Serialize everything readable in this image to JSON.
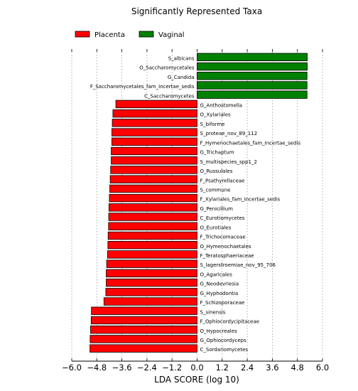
{
  "chart_data": {
    "type": "bar",
    "orientation": "horizontal",
    "title": "Significantly Represented Taxa",
    "xlabel": "LDA SCORE (log 10)",
    "ylabel": "",
    "xlim": [
      -6.0,
      6.0
    ],
    "xticks": [
      "−6.0",
      "−4.8",
      "−3.6",
      "−2.4",
      "−1.2",
      "0.0",
      "1.2",
      "2.4",
      "3.6",
      "4.8",
      "6.0"
    ],
    "grid": "vertical dotted",
    "legend_position": "top-left",
    "series": [
      {
        "name": "Placenta",
        "color": "#ff0000"
      },
      {
        "name": "Vaginal",
        "color": "#008000"
      }
    ],
    "categories": [
      "S_albicans",
      "O_Saccharomycetales",
      "G_Candida",
      "F_Saccharomycetales_fam_Incertae_sedis",
      "C_Saccharomycetes",
      "G_Anthostomella",
      "O_Xylariales",
      "S_biforme",
      "S_proteae_nov_89_112",
      "F_Hymenochaetales_fam_Incertae_sedis",
      "G_Trichaptum",
      "S_multispecies_spp1_2",
      "O_Russulales",
      "F_Psathyrellaceae",
      "S_commune",
      "F_Xylariales_fam_Incertae_sedis",
      "G_Penicillium",
      "C_Eurotiomycetes",
      "O_Eurotiales",
      "F_Trichocomaceae",
      "O_Hymenochaetales",
      "F_Teratosphaeriaceae",
      "S_lagerstroemiae_nov_95_706",
      "O_Agaricales",
      "G_Neodevriesia",
      "G_Hyphodontia",
      "F_Schizoporaceae",
      "S_sinensis",
      "F_Ophiocordycipitaceae",
      "O_Hypocreales",
      "G_Ophiocordyceps",
      "C_Sordariomycetes"
    ],
    "values": [
      5.27,
      5.27,
      5.26,
      5.26,
      5.26,
      -3.89,
      -4.03,
      -4.06,
      -4.08,
      -4.08,
      -4.11,
      -4.11,
      -4.14,
      -4.16,
      -4.18,
      -4.2,
      -4.22,
      -4.23,
      -4.24,
      -4.26,
      -4.27,
      -4.29,
      -4.33,
      -4.35,
      -4.35,
      -4.37,
      -4.46,
      -5.06,
      -5.07,
      -5.1,
      -5.12,
      -5.13
    ],
    "groups": [
      "Vaginal",
      "Vaginal",
      "Vaginal",
      "Vaginal",
      "Vaginal",
      "Placenta",
      "Placenta",
      "Placenta",
      "Placenta",
      "Placenta",
      "Placenta",
      "Placenta",
      "Placenta",
      "Placenta",
      "Placenta",
      "Placenta",
      "Placenta",
      "Placenta",
      "Placenta",
      "Placenta",
      "Placenta",
      "Placenta",
      "Placenta",
      "Placenta",
      "Placenta",
      "Placenta",
      "Placenta",
      "Placenta",
      "Placenta",
      "Placenta",
      "Placenta",
      "Placenta"
    ]
  }
}
